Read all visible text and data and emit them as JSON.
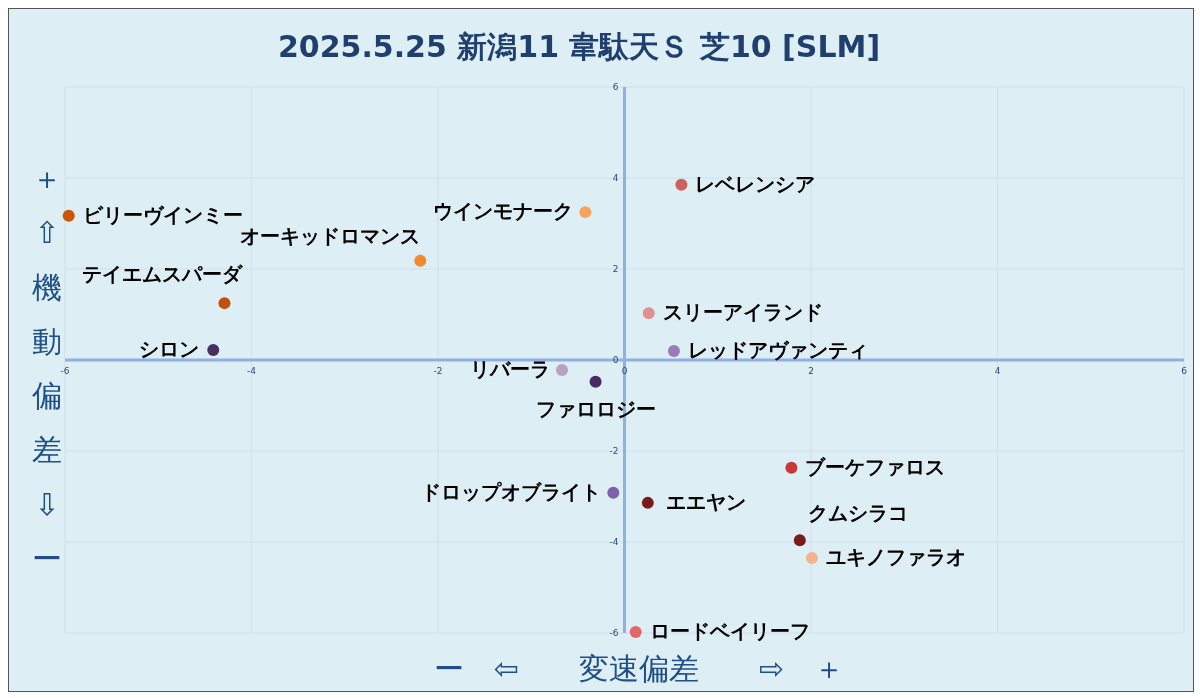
{
  "chart_data": {
    "type": "scatter",
    "title": "2025.5.25 新潟11 韋駄天Ｓ 芝10 [SLM]",
    "xlabel": "ー　⇦　　変速偏差　　⇨　＋",
    "ylabel": "＋⇧機動偏差⇩ー",
    "xlim": [
      -6,
      6
    ],
    "ylim": [
      -6,
      6
    ],
    "xticks": [
      -6,
      -4,
      -2,
      0,
      2,
      4,
      6
    ],
    "yticks": [
      -6,
      -4,
      -2,
      0,
      2,
      4,
      6
    ],
    "grid": true,
    "legend": false,
    "marker": "circle",
    "series": [
      {
        "name": "ビリーヴインミー",
        "color": "#cc5500",
        "x": [
          -5.96
        ],
        "values": [
          3.17
        ]
      },
      {
        "name": "オーキッドロマンス",
        "color": "#f08a30",
        "x": [
          -2.19
        ],
        "values": [
          2.18
        ]
      },
      {
        "name": "ウインモナーク",
        "color": "#f4a460",
        "x": [
          -0.42
        ],
        "values": [
          3.25
        ]
      },
      {
        "name": "レベレンシア",
        "color": "#d06060",
        "x": [
          0.61
        ],
        "values": [
          3.85
        ]
      },
      {
        "name": "テイエムスパーダ",
        "color": "#c0500a",
        "x": [
          -4.29
        ],
        "values": [
          1.25
        ]
      },
      {
        "name": "シロン",
        "color": "#4a3060",
        "x": [
          -4.41
        ],
        "values": [
          0.22
        ]
      },
      {
        "name": "スリーアイランド",
        "color": "#e09090",
        "x": [
          0.26
        ],
        "values": [
          1.03
        ]
      },
      {
        "name": "レッドアヴァンティ",
        "color": "#9a7ab8",
        "x": [
          0.53
        ],
        "values": [
          0.2
        ]
      },
      {
        "name": "リバーラ",
        "color": "#b8a0c0",
        "x": [
          -0.67
        ],
        "values": [
          -0.22
        ]
      },
      {
        "name": "ファロロジー",
        "color": "#4a2a60",
        "x": [
          -0.31
        ],
        "values": [
          -0.48
        ]
      },
      {
        "name": "ブーケファロス",
        "color": "#c83838",
        "x": [
          1.79
        ],
        "values": [
          -2.37
        ]
      },
      {
        "name": "ドロップオブライト",
        "color": "#8060a8",
        "x": [
          -0.12
        ],
        "values": [
          -2.92
        ]
      },
      {
        "name": "エエヤン",
        "color": "#7a1a1a",
        "x": [
          0.25
        ],
        "values": [
          -3.14
        ]
      },
      {
        "name": "クムシラコ",
        "color": "#7a1a1a",
        "x": [
          1.88
        ],
        "values": [
          -3.96
        ]
      },
      {
        "name": "ユキノファラオ",
        "color": "#f4b48a",
        "x": [
          2.01
        ],
        "values": [
          -4.35
        ]
      },
      {
        "name": "ロードベイリーフ",
        "color": "#e06868",
        "x": [
          0.12
        ],
        "values": [
          -5.98
        ]
      }
    ]
  }
}
